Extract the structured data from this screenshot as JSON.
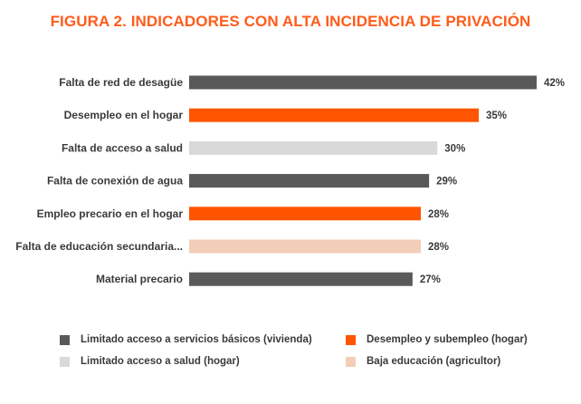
{
  "chart_data": {
    "type": "bar",
    "orientation": "horizontal",
    "title": "FIGURA 2. INDICADORES CON ALTA INCIDENCIA DE PRIVACIÓN",
    "categories": [
      "Falta de red de desagüe",
      "Desempleo en el hogar",
      "Falta de acceso a salud",
      "Falta de conexión de agua",
      "Empleo precario en el hogar",
      "Falta de educación secundaria...",
      "Material precario"
    ],
    "values": [
      42,
      35,
      30,
      29,
      28,
      28,
      27
    ],
    "value_labels": [
      "42%",
      "35%",
      "30%",
      "29%",
      "28%",
      "28%",
      "27%"
    ],
    "groups": [
      0,
      1,
      2,
      0,
      1,
      3,
      0
    ],
    "xlim": [
      0,
      42
    ],
    "grid": false,
    "legend_position": "bottom",
    "legend": [
      {
        "label": "Limitado acceso a servicios básicos (vivienda)",
        "color": "#595959"
      },
      {
        "label": "Desempleo y subempleo (hogar)",
        "color": "#ff5500"
      },
      {
        "label": "Limitado acceso a salud (hogar)",
        "color": "#d9d9d9"
      },
      {
        "label": "Baja educación (agricultor)",
        "color": "#f2cdb8"
      }
    ]
  }
}
